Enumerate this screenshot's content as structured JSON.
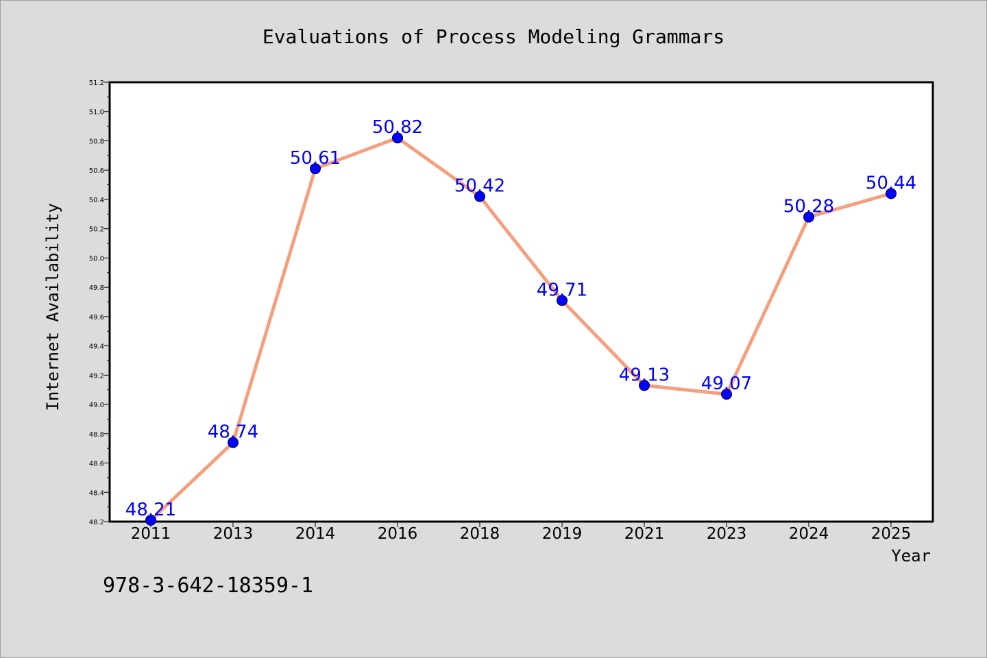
{
  "chart_data": {
    "type": "line",
    "title": "Evaluations of Process Modeling Grammars",
    "xlabel": "Year",
    "ylabel": "Internet Availability",
    "categories": [
      "2011",
      "2013",
      "2014",
      "2016",
      "2018",
      "2019",
      "2021",
      "2023",
      "2024",
      "2025"
    ],
    "series": [
      {
        "values": [
          48.21,
          48.74,
          50.61,
          50.82,
          50.42,
          49.71,
          49.13,
          49.07,
          50.28,
          50.44
        ]
      }
    ],
    "data_labels": [
      "48.21",
      "48.74",
      "50.61",
      "50.82",
      "50.42",
      "49.71",
      "49.13",
      "49.07",
      "50.28",
      "50.44"
    ],
    "ylim": [
      48.2,
      51.2
    ],
    "yticks": [
      "48.2",
      "48.4",
      "48.6",
      "48.8",
      "49.0",
      "49.2",
      "49.4",
      "49.6",
      "49.8",
      "50.0",
      "50.2",
      "50.4",
      "50.6",
      "50.8",
      "51.0",
      "51.2"
    ],
    "grid": false,
    "legend": "none",
    "colors": {
      "line": "#f4a07e",
      "marker": "#0000ff",
      "data_label": "#0000ff",
      "background": "#dcdcdc",
      "plot_area": "#ffffff"
    }
  },
  "footer": {
    "isbn": "978-3-642-18359-1"
  }
}
